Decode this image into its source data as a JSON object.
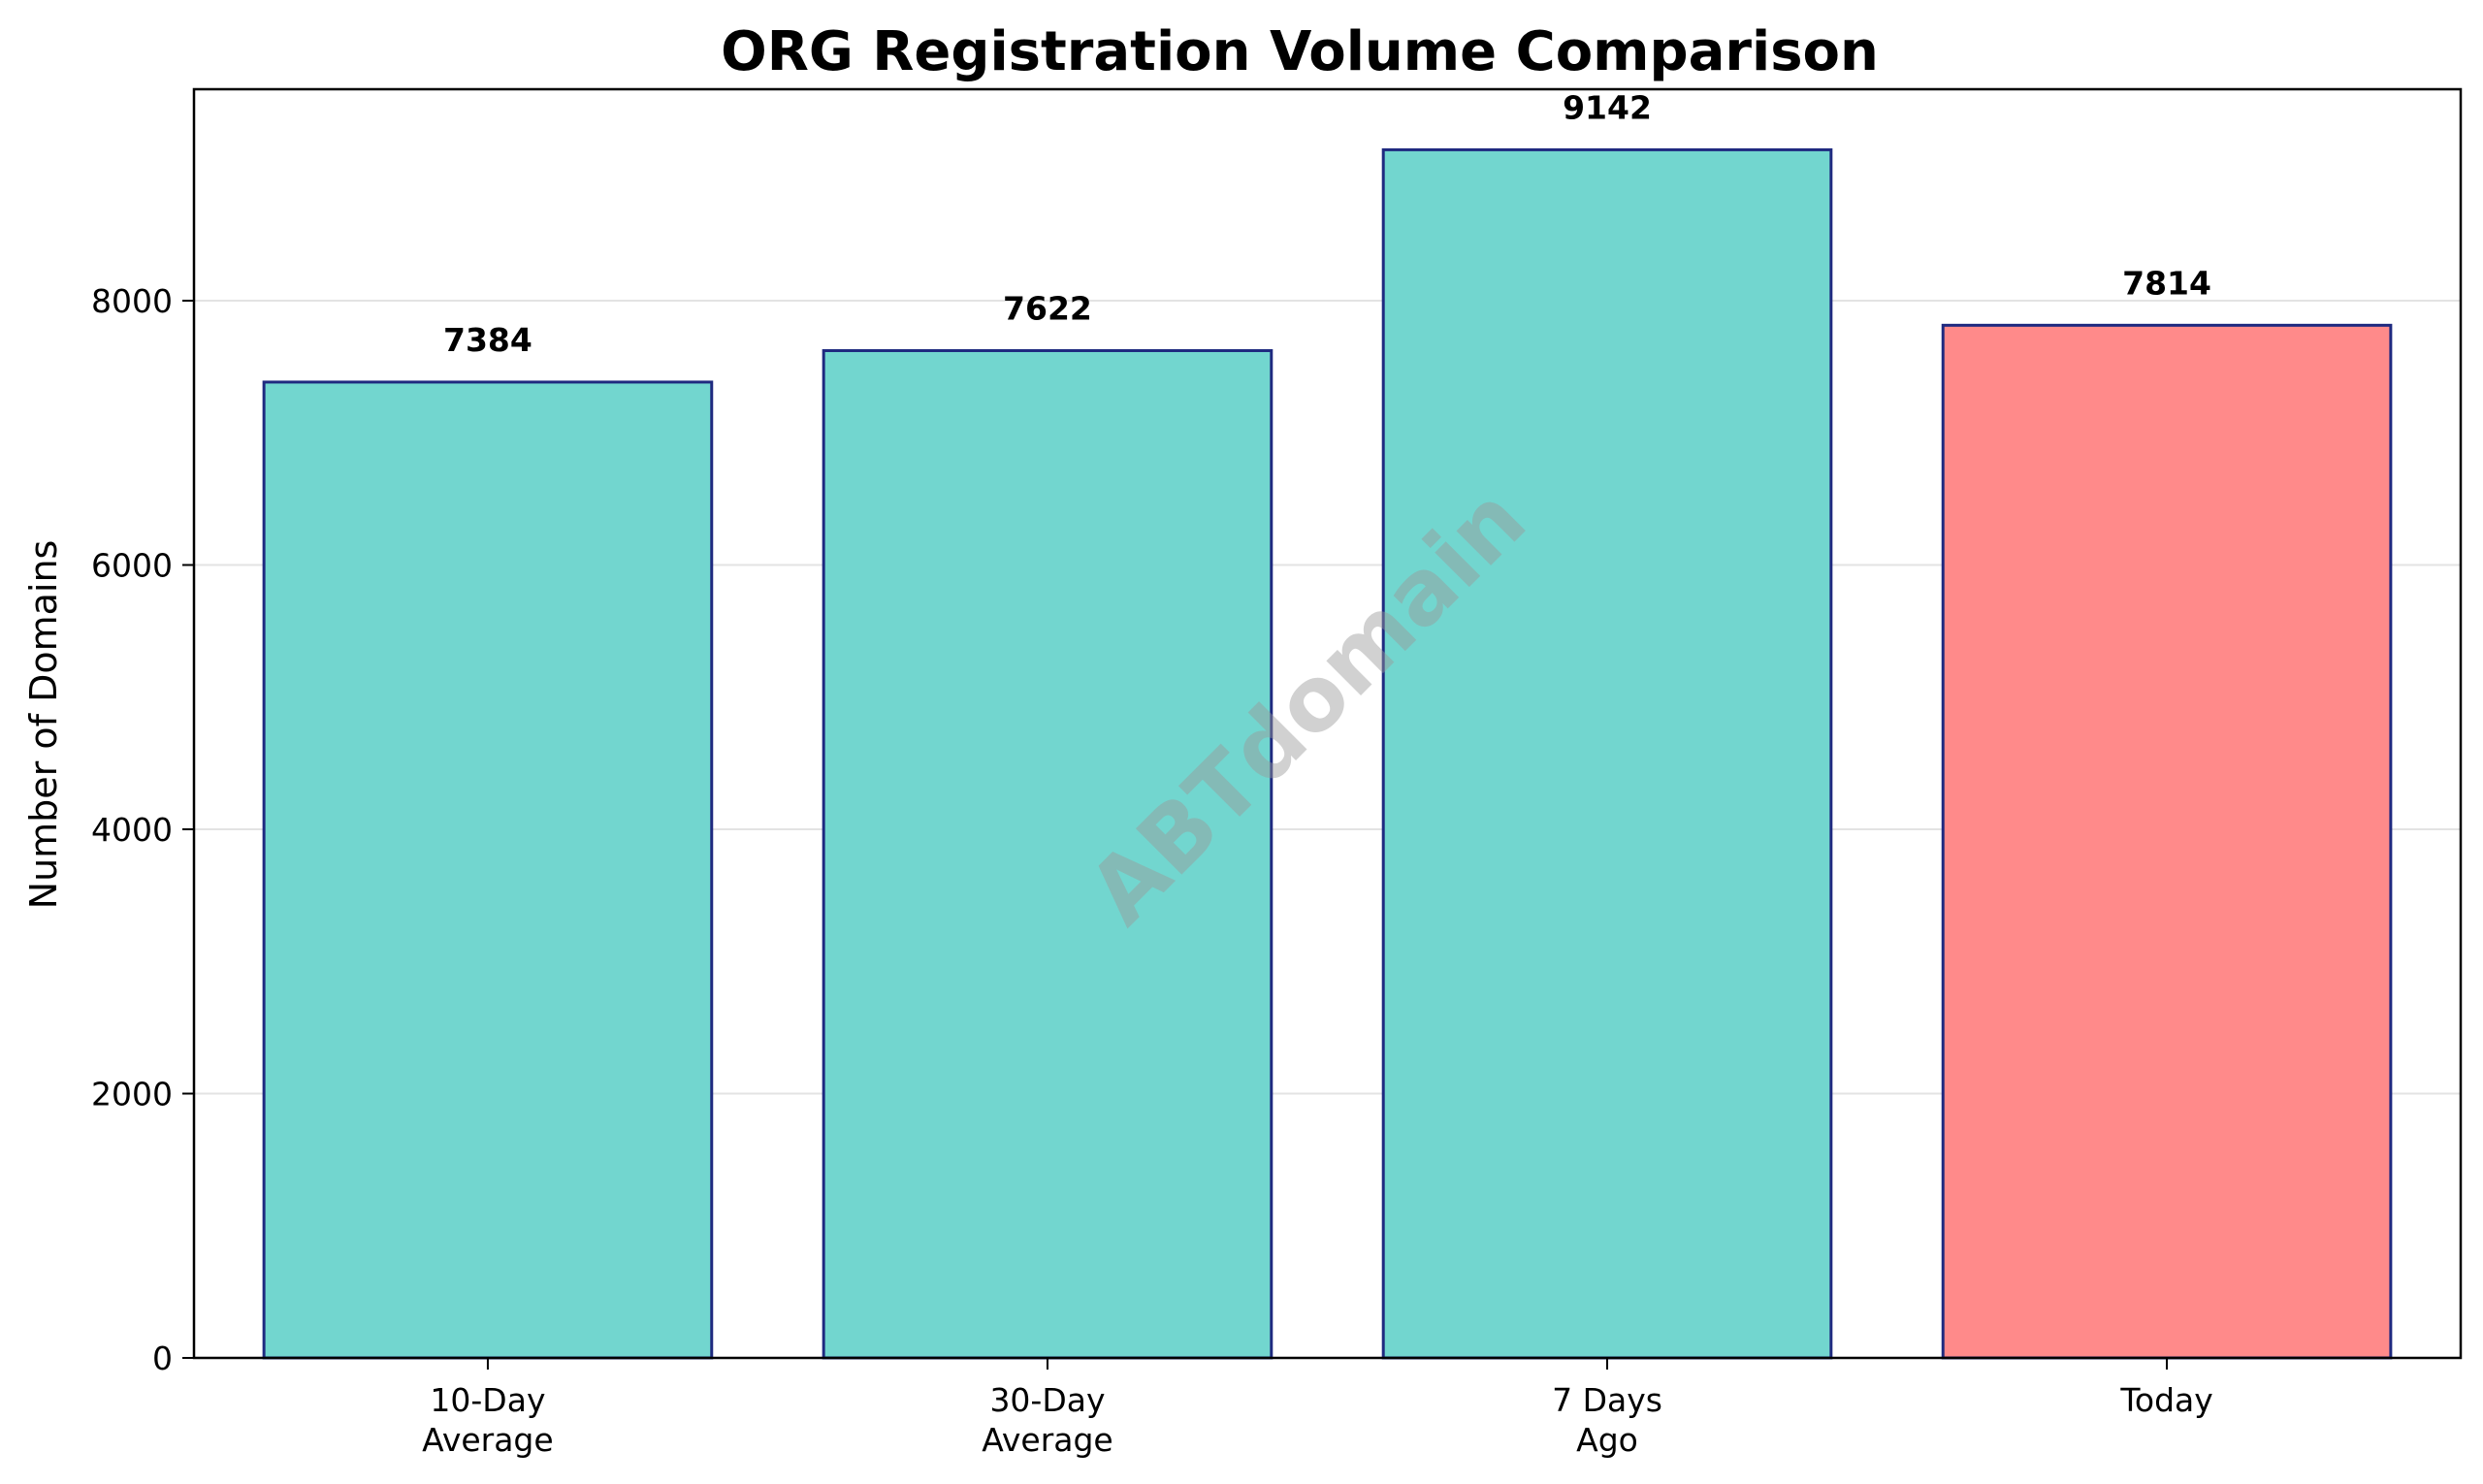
{
  "chart_data": {
    "type": "bar",
    "title": "ORG Registration Volume Comparison",
    "xlabel": "",
    "ylabel": "Number of Domains",
    "categories": [
      [
        "10-Day",
        "Average"
      ],
      [
        "30-Day",
        "Average"
      ],
      [
        "7 Days",
        "Ago"
      ],
      [
        "Today"
      ]
    ],
    "values": [
      7384,
      7622,
      9142,
      7814
    ],
    "value_labels": [
      "7384",
      "7622",
      "9142",
      "7814"
    ],
    "bar_colors": [
      "#72d6cf",
      "#72d6cf",
      "#72d6cf",
      "#ff8a8a"
    ],
    "bar_edge_color": "#1f2a80",
    "ylim": [
      0,
      9600
    ],
    "yticks": [
      0,
      2000,
      4000,
      6000,
      8000
    ],
    "ytick_labels": [
      "0",
      "2000",
      "4000",
      "6000",
      "8000"
    ],
    "grid": "horizontal",
    "watermark": "ABTdomain"
  }
}
